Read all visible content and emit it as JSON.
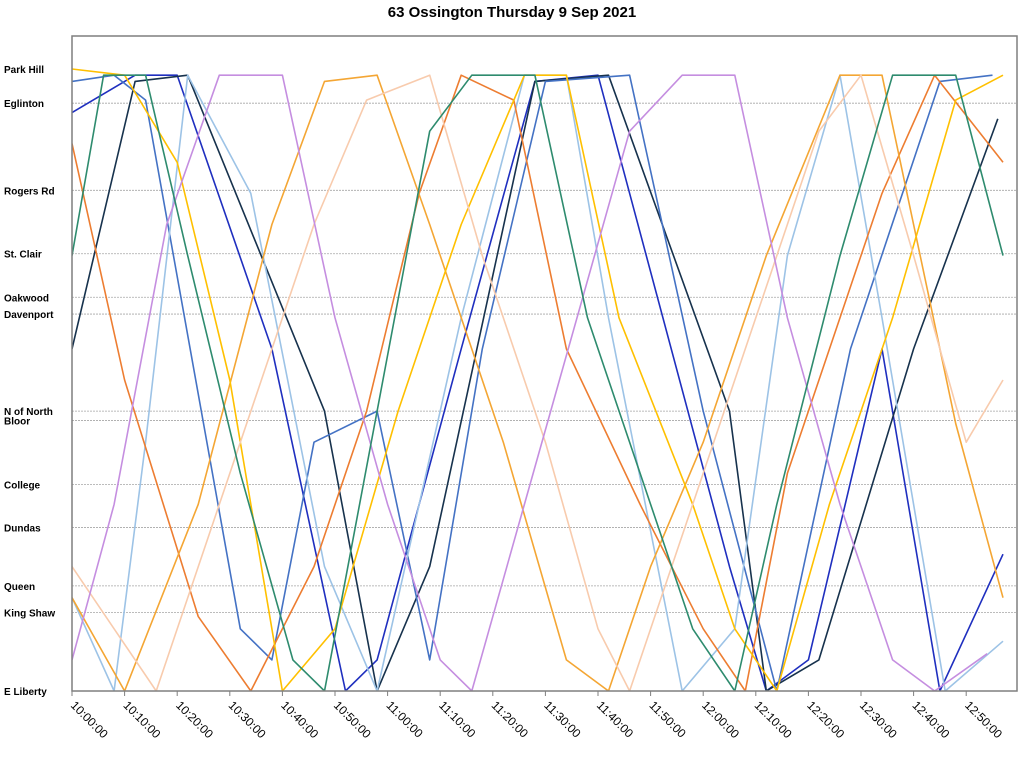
{
  "chart_data": {
    "type": "line",
    "title": "63 Ossington Thursday 9 Sep 2021",
    "xlabel": "",
    "ylabel": "",
    "x_range": [
      "10:00:00",
      "12:57:00"
    ],
    "x_ticks": [
      "10:00:00",
      "10:10:00",
      "10:20:00",
      "10:30:00",
      "10:40:00",
      "10:50:00",
      "11:00:00",
      "11:10:00",
      "11:20:00",
      "11:30:00",
      "11:40:00",
      "11:50:00",
      "12:00:00",
      "12:10:00",
      "12:20:00",
      "12:30:00",
      "12:40:00",
      "12:50:00"
    ],
    "y_axis": "stop position along route (0 = E Liberty, 100 = Park Hill)",
    "stops": [
      {
        "label": "Park Hill",
        "pos": 100
      },
      {
        "label": "Eglinton",
        "pos": 94.5
      },
      {
        "label": "Rogers Rd",
        "pos": 80.5
      },
      {
        "label": "St. Clair",
        "pos": 70.3
      },
      {
        "label": "Oakwood",
        "pos": 63.3
      },
      {
        "label": "Davenport",
        "pos": 60.6
      },
      {
        "label": "N of North",
        "pos": 45
      },
      {
        "label": "Bloor",
        "pos": 43.5
      },
      {
        "label": "College",
        "pos": 33.2
      },
      {
        "label": "Dundas",
        "pos": 26.3
      },
      {
        "label": "Queen",
        "pos": 16.9
      },
      {
        "label": "King Shaw",
        "pos": 12.6
      },
      {
        "label": "E Liberty",
        "pos": 0
      }
    ],
    "grid": true,
    "legend": "none",
    "series": [
      {
        "color": "#1f2fbf",
        "points": [
          [
            "10:00",
            93
          ],
          [
            "10:12",
            99
          ],
          [
            "10:20",
            99
          ],
          [
            "10:38",
            55
          ],
          [
            "10:52",
            0
          ],
          [
            "10:58",
            5
          ],
          [
            "11:14",
            55
          ],
          [
            "11:28",
            98
          ],
          [
            "11:40",
            99
          ],
          [
            "12:05",
            20
          ],
          [
            "12:12",
            0
          ],
          [
            "12:20",
            5
          ],
          [
            "12:34",
            55
          ],
          [
            "12:45",
            0
          ],
          [
            "12:57",
            22
          ]
        ]
      },
      {
        "color": "#17324d",
        "points": [
          [
            "10:00",
            55
          ],
          [
            "10:12",
            98
          ],
          [
            "10:22",
            99
          ],
          [
            "10:48",
            45
          ],
          [
            "10:58",
            0
          ],
          [
            "11:08",
            20
          ],
          [
            "11:28",
            98
          ],
          [
            "11:42",
            99
          ],
          [
            "12:05",
            45
          ],
          [
            "12:12",
            0
          ],
          [
            "12:22",
            5
          ],
          [
            "12:40",
            55
          ],
          [
            "12:56",
            92
          ]
        ]
      },
      {
        "color": "#4472c4",
        "points": [
          [
            "10:00",
            98
          ],
          [
            "10:08",
            99
          ],
          [
            "10:14",
            95
          ],
          [
            "10:32",
            10
          ],
          [
            "10:38",
            5
          ],
          [
            "10:46",
            40
          ],
          [
            "10:58",
            45
          ],
          [
            "11:08",
            5
          ],
          [
            "11:18",
            55
          ],
          [
            "11:30",
            98
          ],
          [
            "11:46",
            99
          ],
          [
            "12:00",
            45
          ],
          [
            "12:14",
            0
          ],
          [
            "12:28",
            55
          ],
          [
            "12:45",
            98
          ],
          [
            "12:55",
            99
          ]
        ]
      },
      {
        "color": "#9dc3e6",
        "points": [
          [
            "10:00",
            15
          ],
          [
            "10:08",
            0
          ],
          [
            "10:14",
            40
          ],
          [
            "10:22",
            99
          ],
          [
            "10:34",
            80
          ],
          [
            "10:48",
            20
          ],
          [
            "10:58",
            0
          ],
          [
            "11:14",
            60
          ],
          [
            "11:26",
            99
          ],
          [
            "11:34",
            99
          ],
          [
            "11:42",
            60
          ],
          [
            "11:56",
            0
          ],
          [
            "12:06",
            10
          ],
          [
            "12:16",
            70
          ],
          [
            "12:26",
            99
          ],
          [
            "12:34",
            60
          ],
          [
            "12:46",
            0
          ],
          [
            "12:57",
            8
          ]
        ]
      },
      {
        "color": "#ed7d31",
        "points": [
          [
            "10:00",
            88
          ],
          [
            "10:10",
            50
          ],
          [
            "10:24",
            12
          ],
          [
            "10:34",
            0
          ],
          [
            "10:46",
            20
          ],
          [
            "10:56",
            45
          ],
          [
            "11:06",
            80
          ],
          [
            "11:14",
            99
          ],
          [
            "11:24",
            95
          ],
          [
            "11:34",
            55
          ],
          [
            "11:48",
            30
          ],
          [
            "12:00",
            10
          ],
          [
            "12:08",
            0
          ],
          [
            "12:16",
            35
          ],
          [
            "12:26",
            60
          ],
          [
            "12:34",
            80
          ],
          [
            "12:44",
            99
          ],
          [
            "12:57",
            85
          ]
        ]
      },
      {
        "color": "#f4a634",
        "points": [
          [
            "10:00",
            15
          ],
          [
            "10:10",
            0
          ],
          [
            "10:24",
            30
          ],
          [
            "10:38",
            75
          ],
          [
            "10:48",
            98
          ],
          [
            "10:58",
            99
          ],
          [
            "11:08",
            75
          ],
          [
            "11:22",
            40
          ],
          [
            "11:34",
            5
          ],
          [
            "11:42",
            0
          ],
          [
            "11:50",
            20
          ],
          [
            "12:00",
            40
          ],
          [
            "12:12",
            70
          ],
          [
            "12:26",
            99
          ],
          [
            "12:34",
            99
          ],
          [
            "12:48",
            43
          ],
          [
            "12:57",
            15
          ]
        ]
      },
      {
        "color": "#ffc000",
        "points": [
          [
            "10:00",
            100
          ],
          [
            "10:10",
            99
          ],
          [
            "10:20",
            85
          ],
          [
            "10:30",
            50
          ],
          [
            "10:40",
            0
          ],
          [
            "10:50",
            10
          ],
          [
            "11:02",
            45
          ],
          [
            "11:14",
            75
          ],
          [
            "11:26",
            99
          ],
          [
            "11:34",
            99
          ],
          [
            "11:44",
            60
          ],
          [
            "11:58",
            30
          ],
          [
            "12:06",
            10
          ],
          [
            "12:14",
            0
          ],
          [
            "12:24",
            30
          ],
          [
            "12:36",
            60
          ],
          [
            "12:48",
            95
          ],
          [
            "12:57",
            99
          ]
        ]
      },
      {
        "color": "#f8cbad",
        "points": [
          [
            "10:00",
            20
          ],
          [
            "10:08",
            10
          ],
          [
            "10:16",
            0
          ],
          [
            "10:26",
            25
          ],
          [
            "10:36",
            50
          ],
          [
            "10:46",
            75
          ],
          [
            "10:56",
            95
          ],
          [
            "11:08",
            99
          ],
          [
            "11:18",
            70
          ],
          [
            "11:30",
            40
          ],
          [
            "11:40",
            10
          ],
          [
            "11:46",
            0
          ],
          [
            "11:58",
            30
          ],
          [
            "12:10",
            60
          ],
          [
            "12:22",
            90
          ],
          [
            "12:30",
            99
          ],
          [
            "12:40",
            70
          ],
          [
            "12:50",
            40
          ],
          [
            "12:57",
            50
          ]
        ]
      },
      {
        "color": "#c58ee0",
        "points": [
          [
            "10:00",
            5
          ],
          [
            "10:08",
            30
          ],
          [
            "10:18",
            75
          ],
          [
            "10:28",
            99
          ],
          [
            "10:40",
            99
          ],
          [
            "10:50",
            60
          ],
          [
            "11:00",
            30
          ],
          [
            "11:10",
            5
          ],
          [
            "11:16",
            0
          ],
          [
            "11:26",
            30
          ],
          [
            "11:36",
            60
          ],
          [
            "11:46",
            90
          ],
          [
            "11:56",
            99
          ],
          [
            "12:06",
            99
          ],
          [
            "12:16",
            60
          ],
          [
            "12:26",
            30
          ],
          [
            "12:36",
            5
          ],
          [
            "12:44",
            0
          ],
          [
            "12:54",
            6
          ]
        ]
      },
      {
        "color": "#2e8b6e",
        "points": [
          [
            "10:00",
            70
          ],
          [
            "10:06",
            99
          ],
          [
            "10:14",
            99
          ],
          [
            "10:22",
            70
          ],
          [
            "10:32",
            35
          ],
          [
            "10:42",
            5
          ],
          [
            "10:48",
            0
          ],
          [
            "10:58",
            45
          ],
          [
            "11:08",
            90
          ],
          [
            "11:16",
            99
          ],
          [
            "11:28",
            99
          ],
          [
            "11:38",
            60
          ],
          [
            "11:48",
            35
          ],
          [
            "11:58",
            10
          ],
          [
            "12:06",
            0
          ],
          [
            "12:14",
            30
          ],
          [
            "12:26",
            70
          ],
          [
            "12:36",
            99
          ],
          [
            "12:48",
            99
          ],
          [
            "12:57",
            70
          ]
        ]
      }
    ]
  }
}
